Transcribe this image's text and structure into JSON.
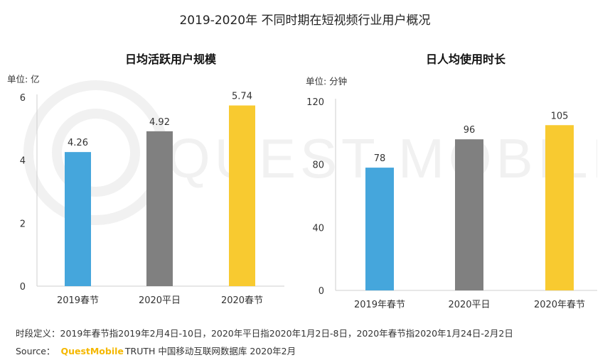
{
  "page": {
    "title": "2019-2020年 不同时期在短视频行业用户概况",
    "footnote": "时段定义：2019年春节指2019年2月4日-10日，2020年平日指2020年1月2日-8日，2020年春节指2020年1月24日-2月2日",
    "source_label": "Source：",
    "source_brand": "QuestMobile",
    "source_rest": "TRUTH 中国移动互联网数据库 2020年2月",
    "watermark": "QUEST MOBILE"
  },
  "chart_data": [
    {
      "type": "bar",
      "title": "日均活跃用户规模",
      "unit": "单位: 亿",
      "categories": [
        "2019春节",
        "2020平日",
        "2020春节"
      ],
      "values": [
        4.26,
        4.92,
        5.74
      ],
      "value_labels": [
        "4.26",
        "4.92",
        "5.74"
      ],
      "ylim": [
        0,
        6
      ],
      "yticks": [
        "0",
        "2",
        "4",
        "6"
      ],
      "colors": [
        "#45a6dc",
        "#808080",
        "#f8ca30"
      ]
    },
    {
      "type": "bar",
      "title": "日人均使用时长",
      "unit": "单位: 分钟",
      "categories": [
        "2019年春节",
        "2020平日",
        "2020年春节"
      ],
      "values": [
        78,
        96,
        105
      ],
      "value_labels": [
        "78",
        "96",
        "105"
      ],
      "ylim": [
        0,
        120
      ],
      "yticks": [
        "0",
        "40",
        "80",
        "120"
      ],
      "colors": [
        "#45a6dc",
        "#808080",
        "#f8ca30"
      ]
    }
  ]
}
